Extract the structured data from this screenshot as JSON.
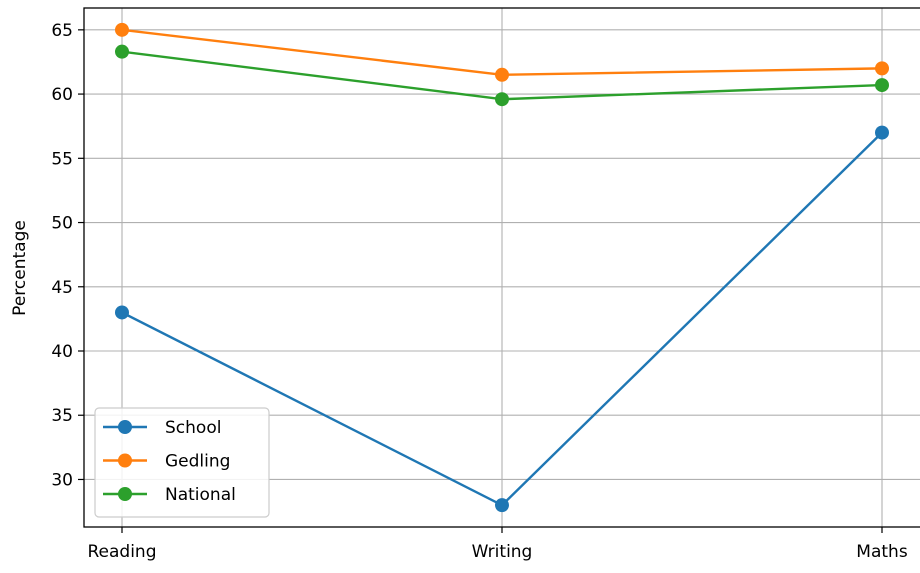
{
  "chart_data": {
    "type": "line",
    "title": "",
    "xlabel": "",
    "ylabel": "Percentage",
    "categories": [
      "Reading",
      "Writing",
      "Maths"
    ],
    "ylim": [
      26.3,
      66.7
    ],
    "yticks": [
      30,
      35,
      40,
      45,
      50,
      55,
      60,
      65
    ],
    "grid": true,
    "legend_position": "lower-left",
    "series": [
      {
        "name": "School",
        "values": [
          43,
          28,
          57
        ],
        "color": "#1f77b4"
      },
      {
        "name": "Gedling",
        "values": [
          65,
          61.5,
          62
        ],
        "color": "#ff7f0e"
      },
      {
        "name": "National",
        "values": [
          63.3,
          59.6,
          60.7
        ],
        "color": "#2ca02c"
      }
    ]
  }
}
